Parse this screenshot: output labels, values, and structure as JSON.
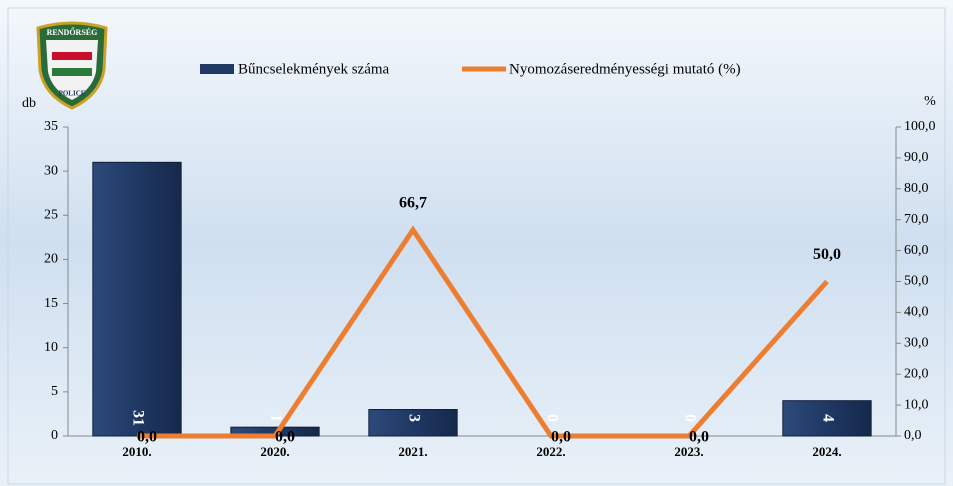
{
  "chart_data": {
    "type": "combo",
    "logo": {
      "top": "RENDŐRSÉG",
      "bottom": "POLICE"
    },
    "ylabel": "db",
    "y2label": "%",
    "categories": [
      "2010.",
      "2020.",
      "2021.",
      "2022.",
      "2023.",
      "2024."
    ],
    "series": [
      {
        "name": "Bűncselekmények száma",
        "type": "bar",
        "color": "#1f3864",
        "values": [
          31,
          1,
          3,
          0,
          0,
          4
        ]
      },
      {
        "name": "Nyomozáseredményességi mutató (%)",
        "type": "line",
        "axis": "y2",
        "color": "#ed7d31",
        "values": [
          0,
          0,
          66.7,
          0,
          0,
          50
        ],
        "value_labels": [
          "0,0",
          "0,0",
          "66,7",
          "0,0",
          "0,0",
          "50,0"
        ]
      }
    ],
    "ylim": [
      0,
      35
    ],
    "yticks": [
      0,
      5,
      10,
      15,
      20,
      25,
      30,
      35
    ],
    "y2lim": [
      0,
      100
    ],
    "y2ticks": [
      {
        "value": 0,
        "label": "0,0"
      },
      {
        "value": 10,
        "label": "10,0"
      },
      {
        "value": 20,
        "label": "20,0"
      },
      {
        "value": 30,
        "label": "30,0"
      },
      {
        "value": 40,
        "label": "40,0"
      },
      {
        "value": 50,
        "label": "50,0"
      },
      {
        "value": 60,
        "label": "60,0"
      },
      {
        "value": 70,
        "label": "70,0"
      },
      {
        "value": 80,
        "label": "80,0"
      },
      {
        "value": 90,
        "label": "90,0"
      },
      {
        "value": 100,
        "label": "100,0"
      }
    ],
    "legend": "top"
  }
}
